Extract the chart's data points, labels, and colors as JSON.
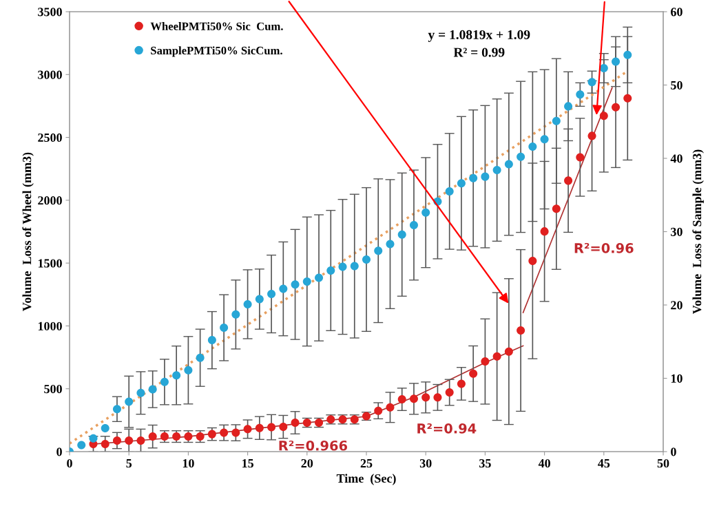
{
  "chart_data": {
    "type": "scatter",
    "xlabel": "Time  (Sec)",
    "ylabel": "Volume  Loss of Wheel (mm3)",
    "y2label": "Volume  Loss of Sample (mm3)",
    "xlim": [
      0,
      50
    ],
    "xticks": [
      0,
      5,
      10,
      15,
      20,
      25,
      30,
      35,
      40,
      45,
      50
    ],
    "ylim": [
      0,
      3500
    ],
    "yticks": [
      0,
      500,
      1000,
      1500,
      2000,
      2500,
      3000,
      3500
    ],
    "y2lim": [
      0,
      60
    ],
    "y2ticks": [
      0,
      10,
      20,
      30,
      40,
      50,
      60
    ],
    "grid": false,
    "legend": "top left",
    "marker": "circle",
    "x": [
      0,
      1,
      2,
      3,
      4,
      5,
      6,
      7,
      8,
      9,
      10,
      11,
      12,
      13,
      14,
      15,
      16,
      17,
      18,
      19,
      20,
      21,
      22,
      23,
      24,
      25,
      26,
      27,
      28,
      29,
      30,
      31,
      32,
      33,
      34,
      35,
      36,
      37,
      38,
      39,
      40,
      41,
      42,
      43,
      44,
      45,
      46,
      47
    ],
    "series": [
      {
        "type": "line",
        "color": "#e8a060",
        "line_style": "dotted",
        "marker": "none",
        "axis": "y2",
        "x": [
          0,
          47
        ],
        "values": [
          1.1,
          51.9
        ]
      },
      {
        "type": "line",
        "color": "#b03030",
        "line_style": "solid",
        "marker": "none",
        "x": [
          2,
          10,
          19,
          25
        ],
        "values": [
          60,
          120,
          220,
          280
        ]
      },
      {
        "type": "line",
        "color": "#b03030",
        "line_style": "solid",
        "marker": "none",
        "x": [
          25,
          29,
          32,
          35,
          38.2
        ],
        "values": [
          280,
          434,
          571,
          708,
          842
        ]
      },
      {
        "type": "line",
        "color": "#b03030",
        "line_style": "solid",
        "marker": "none",
        "x": [
          38.2,
          45.7
        ],
        "values": [
          1106,
          2895
        ]
      },
      {
        "name": "WheelPMTi50% Sic  Cum.",
        "color": "#e0201f",
        "values": [
          null,
          null,
          60,
          60,
          88,
          88,
          88,
          120,
          120,
          120,
          120,
          120,
          139,
          150,
          150,
          179,
          188,
          194,
          197,
          230,
          230,
          230,
          256,
          256,
          256,
          282,
          325,
          352,
          416,
          420,
          431,
          431,
          471,
          540,
          620,
          717,
          757,
          796,
          964,
          1517,
          1752,
          1932,
          2156,
          2342,
          2512,
          2671,
          2740,
          2811
        ],
        "errors": [
          null,
          null,
          62,
          62,
          64,
          91,
          91,
          91,
          46,
          46,
          46,
          46,
          50,
          62,
          64,
          73,
          91,
          100,
          91,
          89,
          36,
          36,
          36,
          36,
          36,
          32,
          64,
          120,
          89,
          123,
          123,
          103,
          103,
          130,
          221,
          339,
          508,
          580,
          643,
          778,
          557,
          482,
          411,
          310,
          438,
          447,
          480,
          491
        ]
      },
      {
        "name": "SamplePMTi50% SicCum.",
        "color": "#27a6d6",
        "axis": "y2",
        "values": [
          0,
          0.9,
          1.8,
          3.2,
          5.8,
          6.8,
          8.0,
          8.5,
          9.5,
          10.4,
          11.1,
          12.8,
          15.2,
          16.9,
          18.7,
          20.1,
          20.8,
          21.5,
          22.2,
          22.8,
          23.2,
          23.7,
          24.7,
          25.2,
          25.3,
          26.2,
          27.4,
          28.3,
          29.6,
          30.9,
          32.6,
          34.1,
          35.5,
          36.6,
          37.3,
          37.5,
          38.4,
          39.2,
          40.2,
          41.6,
          42.6,
          45.1,
          47.1,
          48.7,
          50.4,
          52.3,
          53.2,
          54.1
        ],
        "errors": [
          null,
          null,
          null,
          null,
          1.7,
          3.5,
          2.9,
          2.5,
          3.1,
          4.0,
          4.6,
          3.9,
          3.9,
          4.5,
          4.7,
          4.7,
          4.1,
          5.3,
          6.4,
          7.5,
          8.8,
          8.6,
          8.2,
          9.2,
          9.8,
          9.8,
          9.8,
          8.8,
          8.4,
          7.5,
          7.5,
          7.8,
          7.9,
          9.1,
          9.3,
          9.7,
          9.7,
          9.7,
          10.3,
          10.2,
          9.5,
          8.5,
          4.7,
          1.6,
          1.5,
          2.0,
          3.4,
          3.8
        ]
      }
    ],
    "annotations": [
      "y = 1.0819x + 1.09",
      "R² = 0.99",
      "R²=0.966",
      "R²=0.94",
      "R²=0.96"
    ]
  }
}
